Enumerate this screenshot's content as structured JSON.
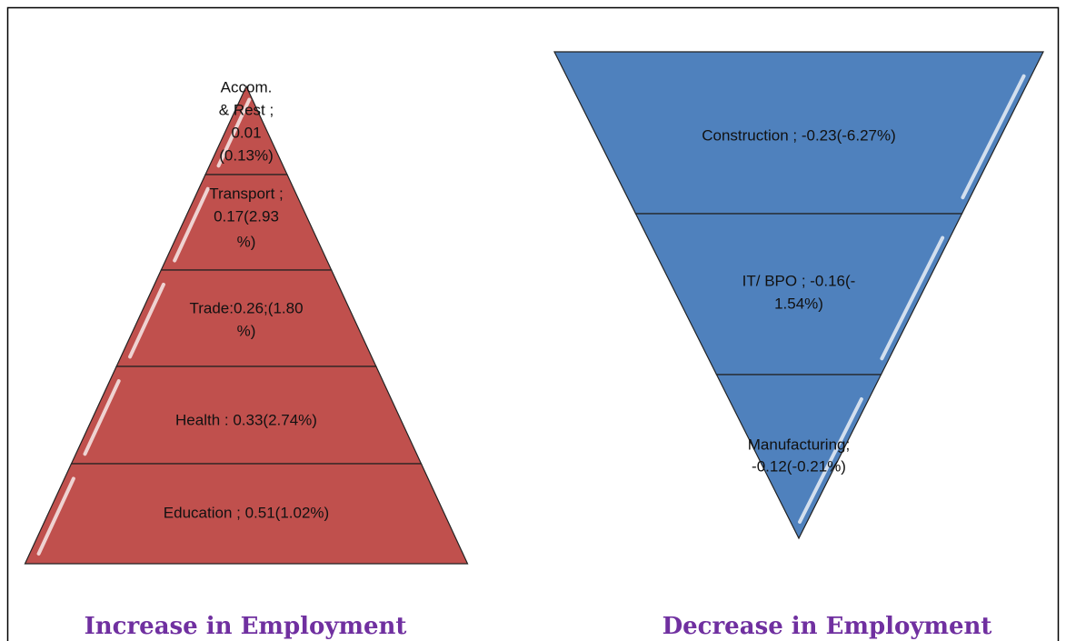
{
  "pyramids": [
    {
      "title": "Increase in Employment",
      "segments": [
        {
          "lines": [
            "Accom.",
            "& Rest ;",
            "0.01",
            "(0.13%)"
          ]
        },
        {
          "lines": [
            "Transport ;",
            "0.17(2.93",
            "%)"
          ]
        },
        {
          "lines": [
            "Trade:0.26;(1.80",
            "%)"
          ]
        },
        {
          "lines": [
            "Health : 0.33(2.74%)"
          ]
        },
        {
          "lines": [
            "Education ; 0.51(1.02%)"
          ]
        }
      ]
    },
    {
      "title": "Decrease in Employment",
      "segments": [
        {
          "lines": [
            "Construction ; -0.23(-6.27%)"
          ]
        },
        {
          "lines": [
            "IT/ BPO ; -0.16(-",
            "1.54%)"
          ]
        },
        {
          "lines": [
            "Manufacturing;",
            "-0.12(-0.21%)"
          ]
        }
      ]
    }
  ]
}
